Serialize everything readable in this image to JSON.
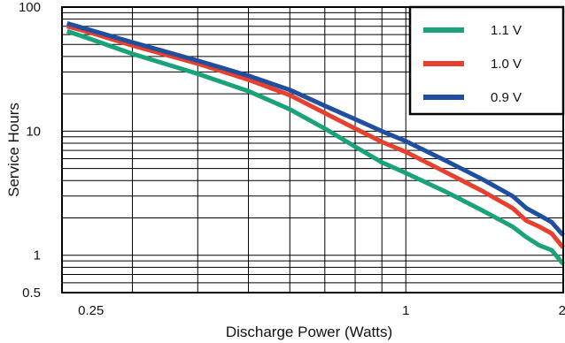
{
  "chart_data": {
    "type": "line",
    "xlabel": "Discharge Power (Watts)",
    "ylabel": "Service Hours",
    "x_scale": "log",
    "y_scale": "log",
    "xlim": [
      0.22,
      2.0
    ],
    "ylim": [
      0.5,
      100
    ],
    "x_ticks": [
      0.25,
      1,
      2
    ],
    "x_tick_labels": [
      "0.25",
      "1",
      "2"
    ],
    "y_ticks": [
      0.5,
      1,
      10,
      100
    ],
    "y_tick_labels": [
      "0.5",
      "1",
      "10",
      "100"
    ],
    "grid": true,
    "legend_position": "top-right",
    "series": [
      {
        "name": "1.1 V",
        "color": "#1aa37a",
        "points": [
          [
            0.225,
            64
          ],
          [
            0.25,
            55
          ],
          [
            0.3,
            42
          ],
          [
            0.4,
            29
          ],
          [
            0.5,
            21
          ],
          [
            0.6,
            15
          ],
          [
            0.7,
            10.5
          ],
          [
            0.8,
            7.5
          ],
          [
            0.9,
            5.6
          ],
          [
            1.0,
            4.6
          ],
          [
            1.2,
            3.2
          ],
          [
            1.4,
            2.3
          ],
          [
            1.6,
            1.7
          ],
          [
            1.7,
            1.4
          ],
          [
            1.8,
            1.2
          ],
          [
            1.9,
            1.1
          ],
          [
            2.0,
            0.85
          ]
        ]
      },
      {
        "name": "1.0 V",
        "color": "#e8402e",
        "points": [
          [
            0.225,
            70
          ],
          [
            0.25,
            62
          ],
          [
            0.3,
            49
          ],
          [
            0.4,
            35
          ],
          [
            0.5,
            26
          ],
          [
            0.6,
            19.5
          ],
          [
            0.7,
            14
          ],
          [
            0.8,
            10.5
          ],
          [
            0.9,
            8.2
          ],
          [
            1.0,
            6.8
          ],
          [
            1.2,
            4.6
          ],
          [
            1.4,
            3.3
          ],
          [
            1.6,
            2.4
          ],
          [
            1.7,
            1.9
          ],
          [
            1.8,
            1.7
          ],
          [
            1.9,
            1.5
          ],
          [
            2.0,
            1.15
          ]
        ]
      },
      {
        "name": "0.9 V",
        "color": "#1f4f9e",
        "points": [
          [
            0.225,
            74
          ],
          [
            0.25,
            65
          ],
          [
            0.3,
            52
          ],
          [
            0.4,
            37
          ],
          [
            0.5,
            28
          ],
          [
            0.6,
            21.5
          ],
          [
            0.7,
            16
          ],
          [
            0.8,
            12.5
          ],
          [
            0.9,
            10
          ],
          [
            1.0,
            8.3
          ],
          [
            1.2,
            5.7
          ],
          [
            1.4,
            4.1
          ],
          [
            1.6,
            3.0
          ],
          [
            1.7,
            2.4
          ],
          [
            1.8,
            2.1
          ],
          [
            1.9,
            1.85
          ],
          [
            2.0,
            1.45
          ]
        ]
      }
    ]
  }
}
